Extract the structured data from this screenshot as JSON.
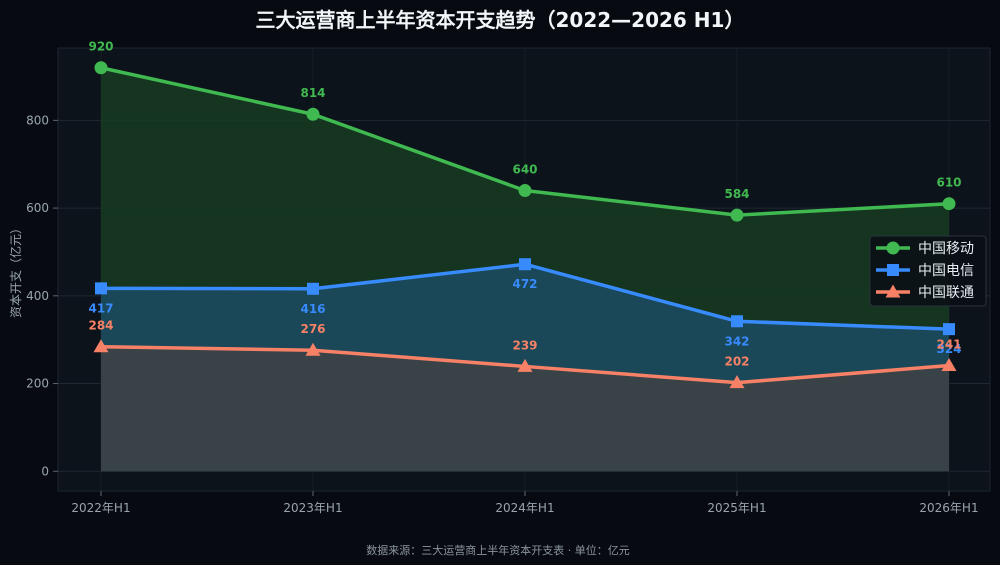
{
  "chart_data": {
    "type": "line",
    "title": "三大运营商上半年资本开支趋势（2022—2026 H1）",
    "ylabel": "资本开支（亿元）",
    "xlabel": "",
    "categories": [
      "2022年H1",
      "2023年H1",
      "2024年H1",
      "2025年H1",
      "2026年H1"
    ],
    "ylim": [
      -45,
      965
    ],
    "yticks": [
      0,
      200,
      400,
      600,
      800
    ],
    "grid": true,
    "legend": "right",
    "source": "数据来源：三大运营商上半年资本开支表 · 单位：亿元",
    "series": [
      {
        "name": "中国移动",
        "values": [
          920,
          814,
          640,
          584,
          610
        ],
        "color": "#3fb950",
        "fill": "#163a22",
        "marker": "circle",
        "label_pos": "above"
      },
      {
        "name": "中国电信",
        "values": [
          417,
          416,
          472,
          342,
          324
        ],
        "color": "#388bfd",
        "fill": "#1b4a5e",
        "marker": "square",
        "label_pos": "below"
      },
      {
        "name": "中国联通",
        "values": [
          284,
          276,
          239,
          202,
          241
        ],
        "color": "#f78166",
        "fill": "#3d4246",
        "marker": "triangle",
        "label_pos": "above"
      }
    ]
  }
}
